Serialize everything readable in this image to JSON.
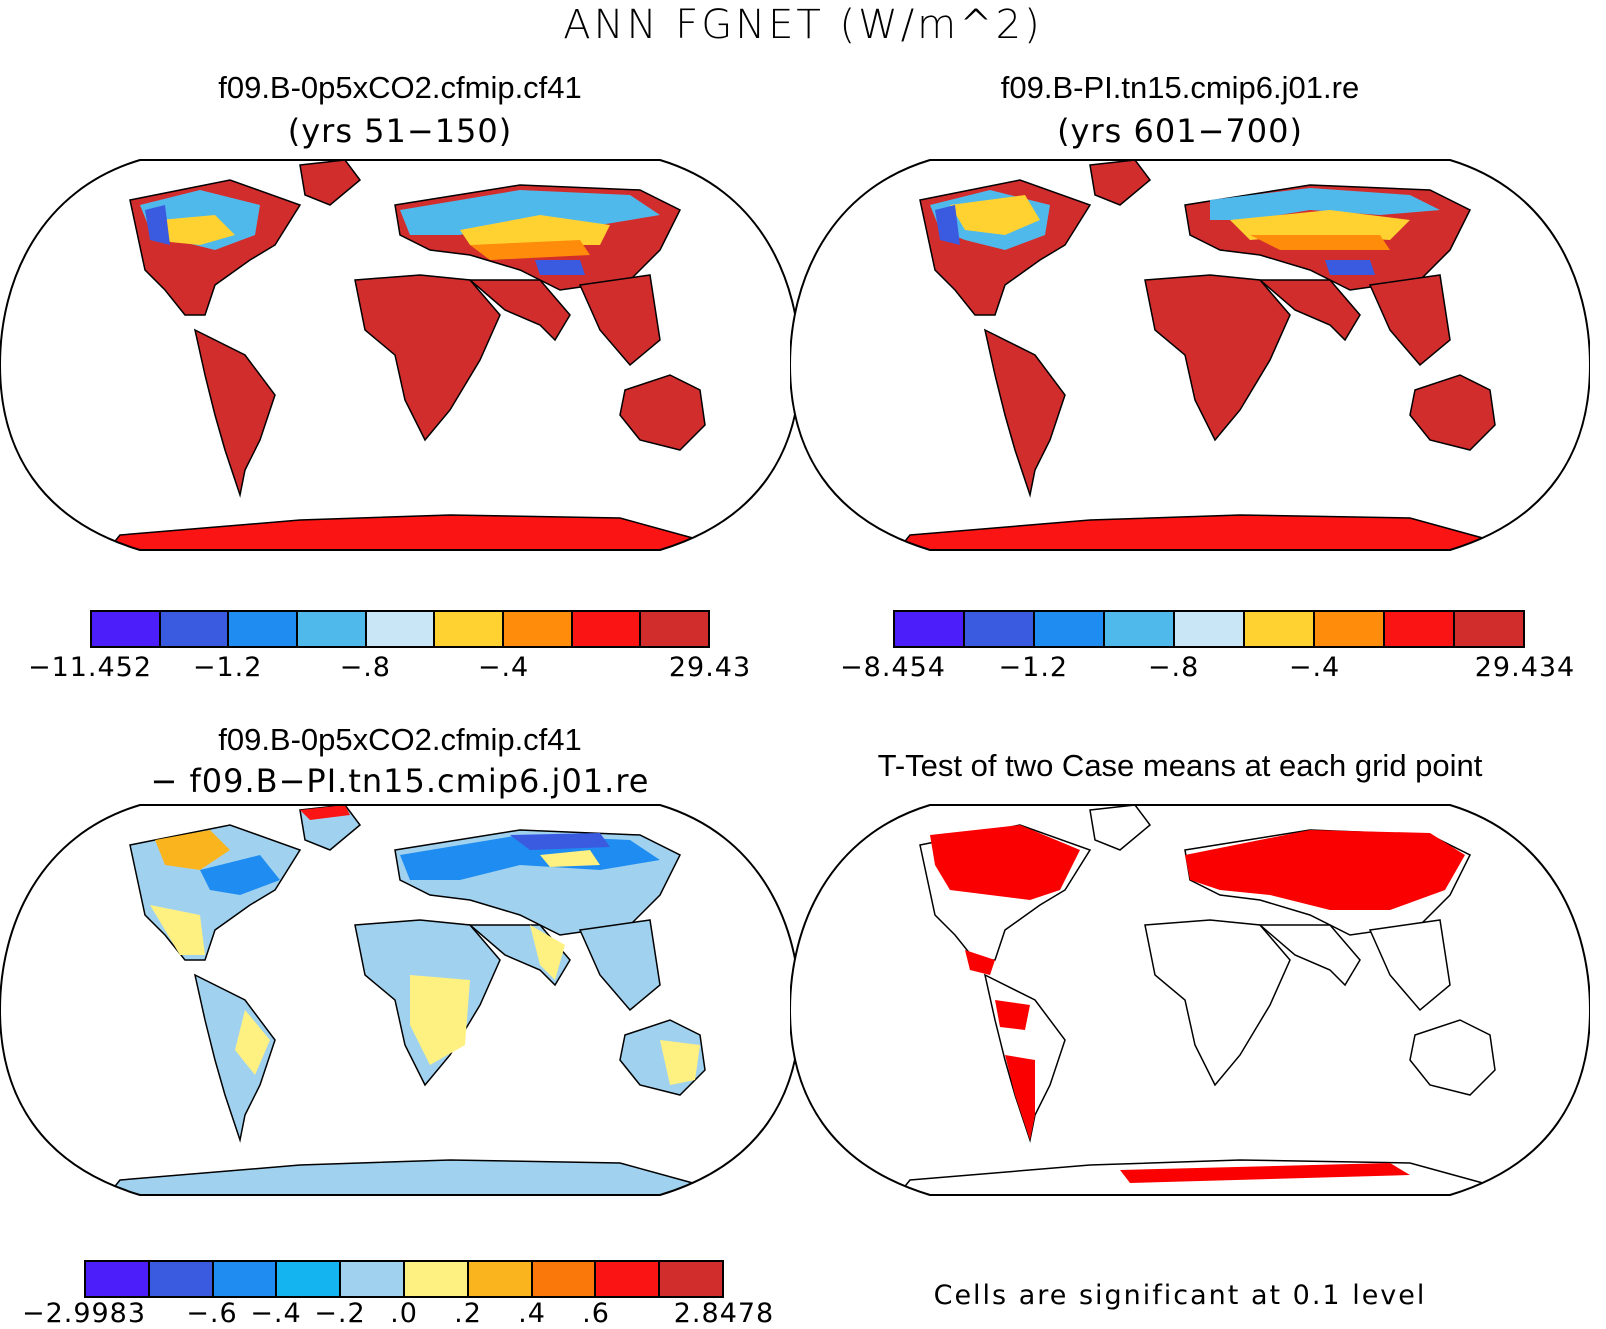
{
  "title": "ANN FGNET (W/m^2)",
  "panels": [
    {
      "name": "case1",
      "title": "f09.B-0p5xCO2.cfmip.cf41",
      "subtitle": "(yrs 51−150)",
      "colorbar": {
        "colors": [
          "#4b1efa",
          "#3a5ae0",
          "#1e8cf0",
          "#50b9ec",
          "#c8e6f5",
          "#ffd232",
          "#ff8c0a",
          "#fa1414",
          "#d22d2d"
        ],
        "labels": [
          "−11.452",
          "−1.2",
          "−.8",
          "−.4",
          "29.43"
        ]
      }
    },
    {
      "name": "case2",
      "title": "f09.B-PI.tn15.cmip6.j01.re",
      "subtitle": "(yrs 601−700)",
      "colorbar": {
        "colors": [
          "#4b1efa",
          "#3a5ae0",
          "#1e8cf0",
          "#50b9ec",
          "#c8e6f5",
          "#ffd232",
          "#ff8c0a",
          "#fa1414",
          "#d22d2d"
        ],
        "labels": [
          "−8.454",
          "−1.2",
          "−.8",
          "−.4",
          "29.434"
        ]
      }
    },
    {
      "name": "difference",
      "title": "f09.B-0p5xCO2.cfmip.cf41",
      "subtitle": "− f09.B−PI.tn15.cmip6.j01.re",
      "colorbar": {
        "colors": [
          "#4b1efa",
          "#3a5ae0",
          "#1e8cf0",
          "#14b4f0",
          "#a0d2f0",
          "#fff082",
          "#fab41e",
          "#fa780a",
          "#fa1414",
          "#d22d2d"
        ],
        "labels": [
          "−2.9983",
          "−.6",
          "−.4",
          "−.2",
          ".0",
          ".2",
          ".4",
          ".6",
          "2.8478"
        ]
      }
    },
    {
      "name": "ttest",
      "title": "T-Test of two Case means at each grid point",
      "note": "Cells are significant at 0.1 level"
    }
  ]
}
